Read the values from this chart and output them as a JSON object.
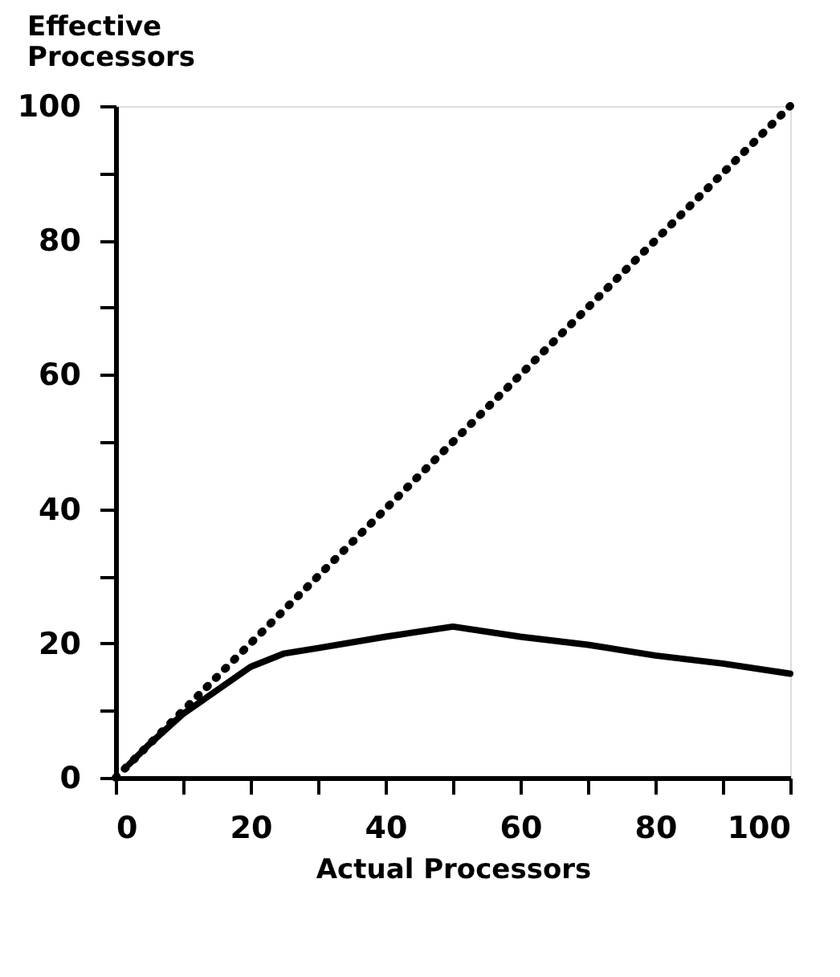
{
  "chart_data": {
    "type": "line",
    "xlabel": "Actual Processors",
    "ylabel": "Effective Processors",
    "xlim": [
      0,
      100
    ],
    "ylim": [
      0,
      100
    ],
    "xticks": [
      0,
      {
        "value": 10,
        "label": null
      },
      20,
      {
        "value": 30,
        "label": null
      },
      40,
      {
        "value": 50,
        "label": null
      },
      60,
      {
        "value": 70,
        "label": null
      },
      80,
      {
        "value": 90,
        "label": null
      },
      100
    ],
    "yticks": [
      0,
      {
        "value": 10,
        "label": null
      },
      20,
      {
        "value": 30,
        "label": null
      },
      40,
      {
        "value": 50,
        "label": null
      },
      60,
      {
        "value": 70,
        "label": null
      },
      80,
      {
        "value": 90,
        "label": null
      },
      100
    ],
    "grid": false,
    "series": [
      {
        "color": "#000000",
        "line_style": "dotted",
        "x": [
          0,
          100
        ],
        "values": [
          0,
          100
        ]
      },
      {
        "color": "#000000",
        "line_style": "solid",
        "x": [
          2,
          5,
          10,
          15,
          20,
          25,
          30,
          40,
          50,
          60,
          70,
          80,
          90,
          100
        ],
        "values": [
          2,
          5,
          9.5,
          13,
          16.5,
          18.5,
          19.3,
          21,
          22.5,
          21,
          19.8,
          18.2,
          17,
          15.5
        ]
      }
    ]
  }
}
